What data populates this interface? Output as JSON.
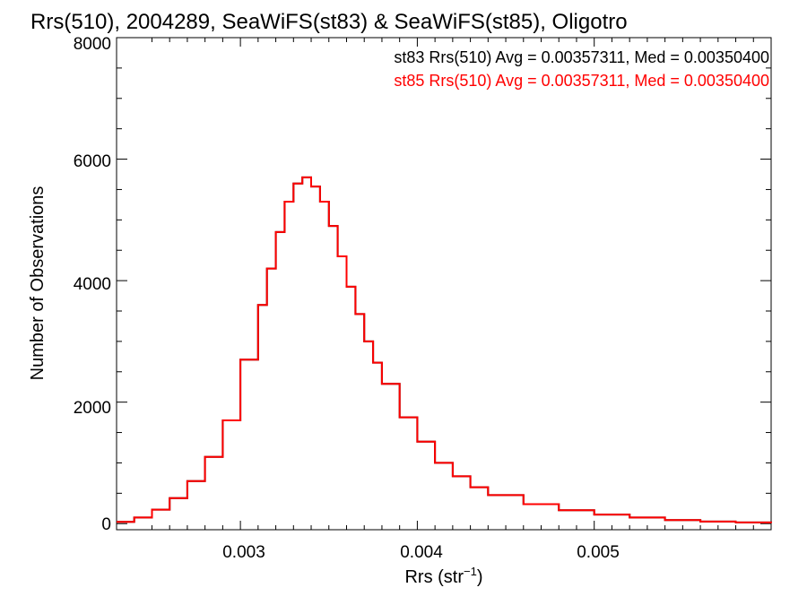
{
  "chart_data": {
    "type": "histogram",
    "title": "Rrs(510), 2004289, SeaWiFS(st83) & SeaWiFS(st85), Oligotro",
    "xlabel": "Rrs (str",
    "xlabel_sup": "−1",
    "xlabel_close": ")",
    "ylabel": "Number of Observations",
    "xlim": [
      0.0023,
      0.006
    ],
    "ylim": [
      -100,
      8000
    ],
    "x_ticks": [
      0.003,
      0.004,
      0.005
    ],
    "x_tick_labels": [
      "0.003",
      "0.004",
      "0.005"
    ],
    "y_ticks": [
      0,
      2000,
      4000,
      6000,
      8000
    ],
    "y_tick_labels": [
      "0",
      "2000",
      "4000",
      "6000",
      "8000"
    ],
    "annotations": [
      {
        "text": "st83 Rrs(510) Avg = 0.00357311, Med = 0.00350400",
        "color": "#000000"
      },
      {
        "text": "st85 Rrs(510) Avg = 0.00357311, Med = 0.00350400",
        "color": "#ff0000"
      }
    ],
    "series": [
      {
        "name": "st83",
        "color": "#000000",
        "x": [
          0.0023,
          0.0024,
          0.0025,
          0.0026,
          0.0027,
          0.0028,
          0.0029,
          0.003,
          0.0031,
          0.00315,
          0.0032,
          0.00325,
          0.0033,
          0.00335,
          0.0034,
          0.00345,
          0.0035,
          0.00355,
          0.0036,
          0.00365,
          0.0037,
          0.00375,
          0.0038,
          0.0039,
          0.004,
          0.0041,
          0.0042,
          0.0043,
          0.0044,
          0.0046,
          0.0048,
          0.005,
          0.0052,
          0.0054,
          0.0056,
          0.0058,
          0.006
        ],
        "values": [
          30,
          100,
          230,
          420,
          700,
          1100,
          1700,
          2700,
          3600,
          4200,
          4800,
          5300,
          5600,
          5700,
          5550,
          5300,
          4900,
          4400,
          3900,
          3450,
          3000,
          2650,
          2300,
          1750,
          1350,
          1000,
          780,
          600,
          470,
          320,
          220,
          150,
          100,
          60,
          35,
          20,
          10
        ]
      },
      {
        "name": "st85",
        "color": "#ff0000",
        "x": [
          0.0023,
          0.0024,
          0.0025,
          0.0026,
          0.0027,
          0.0028,
          0.0029,
          0.003,
          0.0031,
          0.00315,
          0.0032,
          0.00325,
          0.0033,
          0.00335,
          0.0034,
          0.00345,
          0.0035,
          0.00355,
          0.0036,
          0.00365,
          0.0037,
          0.00375,
          0.0038,
          0.0039,
          0.004,
          0.0041,
          0.0042,
          0.0043,
          0.0044,
          0.0046,
          0.0048,
          0.005,
          0.0052,
          0.0054,
          0.0056,
          0.0058,
          0.006
        ],
        "values": [
          30,
          100,
          230,
          420,
          700,
          1100,
          1700,
          2700,
          3600,
          4200,
          4800,
          5300,
          5600,
          5700,
          5550,
          5300,
          4900,
          4400,
          3900,
          3450,
          3000,
          2650,
          2300,
          1750,
          1350,
          1000,
          780,
          600,
          470,
          320,
          220,
          150,
          100,
          60,
          35,
          20,
          10
        ]
      }
    ]
  }
}
